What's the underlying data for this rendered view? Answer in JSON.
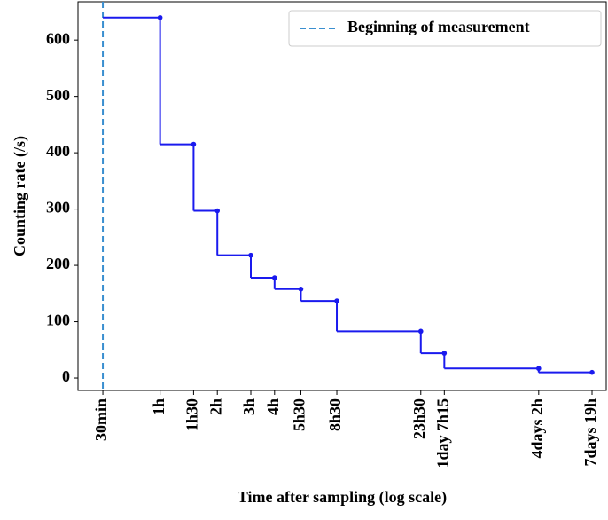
{
  "chart_data": {
    "type": "step",
    "x_label": "Time after sampling (log scale)",
    "y_label": "Counting rate (/s)",
    "x_log": true,
    "xlim": [
      0.37,
      222
    ],
    "ylim": [
      -22,
      668
    ],
    "yticks": [
      0,
      100,
      200,
      300,
      400,
      500,
      600
    ],
    "xticks": [
      {
        "value": 0.5,
        "label": "30min"
      },
      {
        "value": 1,
        "label": "1h"
      },
      {
        "value": 1.5,
        "label": "1h30"
      },
      {
        "value": 2,
        "label": "2h"
      },
      {
        "value": 3,
        "label": "3h"
      },
      {
        "value": 4,
        "label": "4h"
      },
      {
        "value": 5.5,
        "label": "5h30"
      },
      {
        "value": 8.5,
        "label": "8h30"
      },
      {
        "value": 23.5,
        "label": "23h30"
      },
      {
        "value": 31.25,
        "label": "1day 7h15"
      },
      {
        "value": 98,
        "label": "4days 2h"
      },
      {
        "value": 187,
        "label": "7days 19h"
      }
    ],
    "vline": {
      "x": 0.5,
      "name": "Beginning of measurement",
      "color": "#3a8fd0"
    },
    "legend": "upper right",
    "series": [
      {
        "color": "#1a1aee",
        "x": [
          1,
          1.5,
          2,
          3,
          4,
          5.5,
          8.5,
          23.5,
          31.25,
          98,
          187
        ],
        "values": [
          640,
          415,
          297,
          218,
          178,
          158,
          137,
          83,
          44,
          17,
          10
        ]
      }
    ]
  }
}
